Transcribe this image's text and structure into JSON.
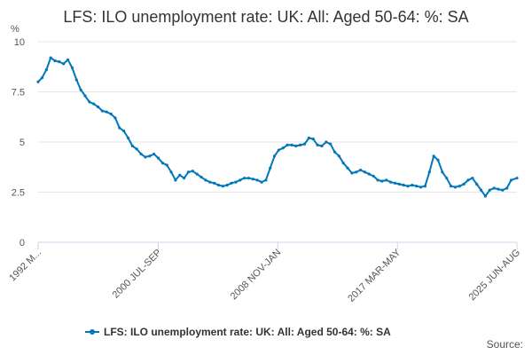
{
  "chart_data": {
    "type": "line",
    "title": "LFS: ILO unemployment rate: UK: All: Aged 50-64: %: SA",
    "ylabel": "%",
    "ylim": [
      0,
      10
    ],
    "yticks": [
      "0",
      "2.5",
      "5",
      "7.5",
      "10"
    ],
    "ytick_values": [
      0,
      2.5,
      5,
      7.5,
      10
    ],
    "xlim": [
      1992.125,
      2025.5
    ],
    "xticks": [
      {
        "label": "1992 M...",
        "x": 1992.125
      },
      {
        "label": "2000 JUL-SEP",
        "x": 2000.5
      },
      {
        "label": "2008 NOV-JAN",
        "x": 2008.83
      },
      {
        "label": "2017 MAR-MAY",
        "x": 2017.17
      },
      {
        "label": "2025 JUN-AUG",
        "x": 2025.5
      }
    ],
    "grid": true,
    "legend_position": "bottom",
    "color": "#0077bb",
    "series": [
      {
        "name": "LFS: ILO unemployment rate: UK: All: Aged 50-64: %: SA",
        "x": [
          1992.125,
          1992.4,
          1992.7,
          1993.0,
          1993.3,
          1993.6,
          1993.9,
          1994.2,
          1994.5,
          1994.8,
          1995.1,
          1995.4,
          1995.7,
          1996.0,
          1996.3,
          1996.6,
          1996.9,
          1997.2,
          1997.5,
          1997.8,
          1998.1,
          1998.4,
          1998.7,
          1999.0,
          1999.3,
          1999.6,
          1999.9,
          2000.2,
          2000.5,
          2000.8,
          2001.1,
          2001.4,
          2001.7,
          2002.0,
          2002.3,
          2002.6,
          2002.9,
          2003.2,
          2003.5,
          2003.8,
          2004.1,
          2004.4,
          2004.7,
          2005.0,
          2005.3,
          2005.6,
          2005.9,
          2006.2,
          2006.5,
          2006.8,
          2007.1,
          2007.4,
          2007.7,
          2008.0,
          2008.3,
          2008.6,
          2008.9,
          2009.2,
          2009.5,
          2009.8,
          2010.1,
          2010.4,
          2010.7,
          2011.0,
          2011.3,
          2011.6,
          2011.9,
          2012.2,
          2012.5,
          2012.8,
          2013.1,
          2013.4,
          2013.7,
          2014.0,
          2014.3,
          2014.6,
          2014.9,
          2015.2,
          2015.5,
          2015.8,
          2016.1,
          2016.4,
          2016.7,
          2017.0,
          2017.3,
          2017.6,
          2017.9,
          2018.2,
          2018.5,
          2018.8,
          2019.1,
          2019.4,
          2019.7,
          2020.0,
          2020.3,
          2020.6,
          2020.9,
          2021.2,
          2021.5,
          2021.8,
          2022.1,
          2022.4,
          2022.7,
          2023.0,
          2023.3,
          2023.6,
          2023.9,
          2024.2,
          2024.5,
          2024.8,
          2025.1,
          2025.5
        ],
        "y": [
          8.0,
          8.2,
          8.6,
          9.2,
          9.05,
          9.0,
          8.9,
          9.1,
          8.7,
          8.1,
          7.6,
          7.3,
          7.0,
          6.9,
          6.75,
          6.55,
          6.5,
          6.4,
          6.2,
          5.7,
          5.55,
          5.2,
          4.8,
          4.65,
          4.4,
          4.25,
          4.3,
          4.4,
          4.2,
          3.95,
          3.85,
          3.5,
          3.1,
          3.35,
          3.2,
          3.5,
          3.55,
          3.4,
          3.25,
          3.1,
          3.0,
          2.95,
          2.85,
          2.8,
          2.85,
          2.95,
          3.0,
          3.1,
          3.2,
          3.2,
          3.15,
          3.1,
          3.0,
          3.1,
          3.7,
          4.3,
          4.6,
          4.7,
          4.85,
          4.85,
          4.8,
          4.85,
          4.9,
          5.2,
          5.15,
          4.85,
          4.8,
          5.0,
          4.9,
          4.5,
          4.3,
          3.95,
          3.7,
          3.45,
          3.5,
          3.6,
          3.5,
          3.4,
          3.3,
          3.1,
          3.05,
          3.1,
          3.0,
          2.95,
          2.9,
          2.85,
          2.8,
          2.85,
          2.8,
          2.75,
          2.8,
          3.5,
          4.3,
          4.1,
          3.5,
          3.2,
          2.8,
          2.75,
          2.8,
          2.9,
          3.1,
          3.2,
          2.9,
          2.6,
          2.3,
          2.6,
          2.7,
          2.65,
          2.6,
          2.7,
          3.1,
          3.2
        ]
      }
    ],
    "source_label": "Source:"
  }
}
